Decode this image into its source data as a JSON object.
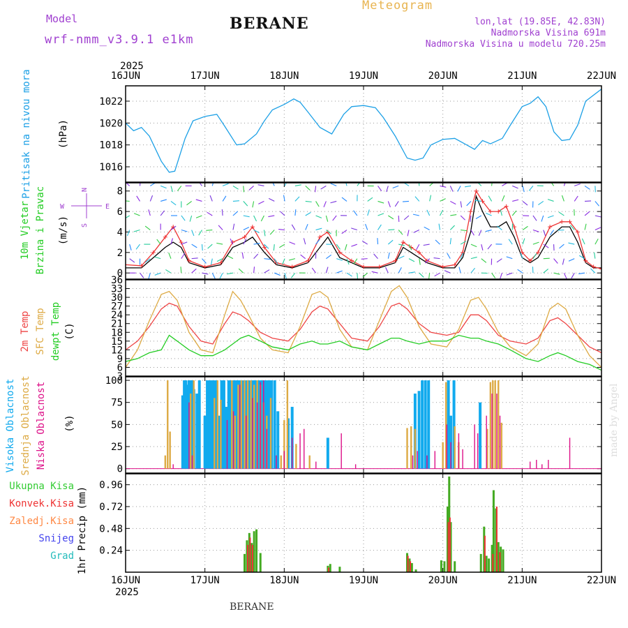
{
  "header": {
    "model_label": "Model",
    "model_name": "wrf-nmm_v3.9.1  e1km",
    "station": "BERANE",
    "meteogram": "Meteogram",
    "lonlat": "lon,lat (19.85E, 42.83N)",
    "elevation": "Nadmorska Visina 691m",
    "model_elevation": "Nadmorska Visina u modelu 720.25m",
    "footer_station": "BERANE",
    "credit": "made by Angel"
  },
  "colors": {
    "pressure": "#1ca0e6",
    "wind_speed": "#000000",
    "gust": "#ee3333",
    "temp2m": "#ee4444",
    "sfc_temp": "#ddaa44",
    "dewpt": "#22cc22",
    "high_cloud": "#11aaee",
    "mid_cloud": "#ddaa44",
    "low_cloud": "#dd1188",
    "total_precip": "#44aa22",
    "conv_precip": "#ee3333",
    "title_purple": "#a040d0",
    "title_orange": "#e8b450"
  },
  "time_axis": {
    "year_top": "2025",
    "year_bottom": "2025",
    "day_labels": [
      "16JUN",
      "17JUN",
      "18JUN",
      "19JUN",
      "20JUN",
      "21JUN",
      "22JUN"
    ]
  },
  "chart_data": [
    {
      "type": "line",
      "id": "pressure",
      "ylabel_lines": [
        "Pritisak na nivou mora"
      ],
      "unit": "(hPa)",
      "ylim": [
        1014.6,
        1023.4
      ],
      "yticks": [
        "1016",
        "1018",
        "1020",
        "1022"
      ],
      "ytick_values": [
        1016,
        1018,
        1020,
        1022
      ],
      "x_days": [
        0,
        0.1,
        0.2,
        0.3,
        0.45,
        0.55,
        0.62,
        0.75,
        0.85,
        1.0,
        1.15,
        1.25,
        1.4,
        1.5,
        1.65,
        1.75,
        1.85,
        2.0,
        2.12,
        2.2,
        2.3,
        2.45,
        2.6,
        2.75,
        2.85,
        3.0,
        3.15,
        3.25,
        3.4,
        3.55,
        3.65,
        3.75,
        3.85,
        4.0,
        4.15,
        4.3,
        4.4,
        4.5,
        4.6,
        4.75,
        4.85,
        5.0,
        5.1,
        5.2,
        5.3,
        5.4,
        5.5,
        5.6,
        5.7,
        5.8,
        6.0
      ],
      "series": [
        {
          "name": "pressure",
          "values": [
            1020.0,
            1019.3,
            1019.6,
            1018.8,
            1016.5,
            1015.5,
            1015.6,
            1018.6,
            1020.2,
            1020.6,
            1020.8,
            1019.7,
            1018.0,
            1018.1,
            1019.0,
            1020.2,
            1021.2,
            1021.7,
            1022.2,
            1021.9,
            1021.0,
            1019.6,
            1019.0,
            1020.8,
            1021.5,
            1021.6,
            1021.4,
            1020.5,
            1018.8,
            1016.8,
            1016.6,
            1016.8,
            1018.0,
            1018.5,
            1018.6,
            1018.0,
            1017.6,
            1018.4,
            1018.1,
            1018.6,
            1019.8,
            1021.5,
            1021.8,
            1022.4,
            1021.5,
            1019.2,
            1018.4,
            1018.5,
            1019.8,
            1022.0,
            1023.1
          ]
        }
      ]
    },
    {
      "type": "line",
      "id": "wind",
      "ylabel_lines": [
        "10m Vjetar",
        "Brzina i Pravac"
      ],
      "unit": "(m/s)",
      "compass": {
        "n": "N",
        "s": "S",
        "e": "E",
        "w": "W"
      },
      "ylim": [
        -0.6,
        8.8
      ],
      "yticks": [
        "0",
        "2",
        "4",
        "6",
        "8"
      ],
      "ytick_values": [
        0,
        2,
        4,
        6,
        8
      ],
      "x_days": [
        0,
        0.2,
        0.35,
        0.5,
        0.6,
        0.7,
        0.8,
        1.0,
        1.2,
        1.35,
        1.5,
        1.6,
        1.75,
        1.9,
        2.1,
        2.3,
        2.45,
        2.55,
        2.7,
        2.85,
        3.0,
        3.2,
        3.4,
        3.5,
        3.6,
        3.7,
        3.8,
        4.0,
        4.15,
        4.25,
        4.35,
        4.42,
        4.5,
        4.6,
        4.7,
        4.8,
        4.9,
        5.0,
        5.1,
        5.2,
        5.35,
        5.5,
        5.6,
        5.7,
        5.8,
        5.9,
        6.0
      ],
      "series": [
        {
          "name": "speed",
          "values": [
            0.5,
            0.5,
            1.5,
            2.5,
            3.0,
            2.5,
            1.0,
            0.5,
            0.8,
            2.5,
            3.0,
            3.5,
            2.0,
            0.8,
            0.5,
            1.0,
            2.5,
            3.5,
            1.5,
            1.0,
            0.5,
            0.5,
            1.0,
            2.5,
            2.0,
            1.5,
            1.0,
            0.5,
            0.5,
            1.5,
            4.0,
            7.5,
            6.0,
            4.5,
            4.5,
            5.0,
            3.5,
            1.5,
            1.0,
            1.5,
            3.5,
            4.5,
            4.5,
            3.0,
            1.0,
            0.5,
            0.5
          ]
        },
        {
          "name": "gust",
          "values": [
            0.8,
            0.7,
            2.0,
            3.5,
            4.5,
            3.0,
            1.2,
            0.6,
            1.0,
            3.0,
            3.5,
            4.5,
            2.5,
            1.0,
            0.6,
            1.2,
            3.5,
            4.0,
            2.0,
            1.2,
            0.6,
            0.6,
            1.2,
            3.0,
            2.5,
            2.0,
            1.2,
            0.6,
            0.8,
            2.0,
            6.0,
            8.0,
            7.0,
            6.0,
            6.0,
            6.5,
            4.5,
            2.0,
            1.2,
            2.0,
            4.5,
            5.0,
            5.0,
            4.0,
            1.2,
            0.6,
            0.4
          ]
        }
      ]
    },
    {
      "type": "line",
      "id": "temperature",
      "ylabel_lines": [
        "2m Temp",
        "SFC Temp",
        "dewpt Temp"
      ],
      "unit": "(C)",
      "ylim": [
        3,
        36
      ],
      "yticks": [
        "3",
        "6",
        "9",
        "12",
        "15",
        "18",
        "21",
        "24",
        "27",
        "30",
        "33",
        "36"
      ],
      "ytick_values": [
        3,
        6,
        9,
        12,
        15,
        18,
        21,
        24,
        27,
        30,
        33,
        36
      ],
      "x_days": [
        0,
        0.15,
        0.3,
        0.45,
        0.55,
        0.65,
        0.8,
        0.95,
        1.1,
        1.25,
        1.35,
        1.45,
        1.55,
        1.7,
        1.85,
        2.05,
        2.2,
        2.35,
        2.45,
        2.55,
        2.7,
        2.85,
        3.05,
        3.2,
        3.35,
        3.45,
        3.55,
        3.7,
        3.85,
        4.05,
        4.2,
        4.35,
        4.45,
        4.55,
        4.7,
        4.85,
        5.05,
        5.2,
        5.35,
        5.45,
        5.55,
        5.7,
        5.85,
        6.0
      ],
      "series": [
        {
          "name": "2m",
          "values": [
            12,
            15,
            20,
            26,
            28,
            27,
            20,
            15,
            14,
            21,
            25,
            24,
            22,
            18,
            16,
            15,
            19,
            25,
            27,
            26,
            21,
            16,
            15,
            20,
            27,
            28,
            26,
            21,
            18,
            17,
            18,
            24,
            24,
            22,
            17,
            15,
            14,
            16,
            22,
            23,
            21,
            17,
            13,
            11
          ]
        },
        {
          "name": "sfc",
          "values": [
            6,
            12,
            22,
            31,
            32,
            29,
            18,
            12,
            11,
            24,
            32,
            29,
            24,
            16,
            12,
            11,
            20,
            31,
            32,
            30,
            19,
            13,
            12,
            22,
            32,
            34,
            30,
            20,
            14,
            13,
            19,
            29,
            30,
            26,
            18,
            13,
            10,
            14,
            26,
            28,
            26,
            17,
            10,
            6
          ]
        },
        {
          "name": "dewpt",
          "values": [
            8,
            9,
            11,
            12,
            17,
            15,
            12,
            10,
            10,
            12,
            14,
            16,
            17,
            15,
            13,
            12,
            14,
            15,
            14,
            14,
            15,
            13,
            12,
            14,
            16,
            16,
            15,
            14,
            15,
            15,
            17,
            16,
            16,
            15,
            14,
            12,
            9,
            8,
            10,
            11,
            10,
            8,
            7,
            5
          ]
        }
      ]
    },
    {
      "type": "bar",
      "id": "clouds",
      "ylabel_lines": [
        "Visoka Oblacnost",
        "Srednja Oblacnost",
        "Niska Oblacnost"
      ],
      "unit": "(%)",
      "ylim": [
        -5,
        104
      ],
      "yticks": [
        "0",
        "25",
        "50",
        "75",
        "100"
      ],
      "ytick_values": [
        0,
        25,
        50,
        75,
        100
      ],
      "series": [
        {
          "name": "high",
          "x_days": [
            0.72,
            0.74,
            0.76,
            0.78,
            0.8,
            0.82,
            0.84,
            0.86,
            0.9,
            0.93,
            1.0,
            1.03,
            1.06,
            1.09,
            1.12,
            1.15,
            1.18,
            1.21,
            1.24,
            1.27,
            1.3,
            1.33,
            1.36,
            1.39,
            1.42,
            1.45,
            1.48,
            1.51,
            1.54,
            1.57,
            1.6,
            1.63,
            1.66,
            1.69,
            1.72,
            1.75,
            1.78,
            1.81,
            1.84,
            1.88,
            1.92,
            2.05,
            2.1,
            2.55,
            3.65,
            3.7,
            3.74,
            3.78,
            3.82,
            4.07,
            4.1,
            4.14,
            4.47
          ],
          "values": [
            83,
            100,
            100,
            95,
            100,
            100,
            100,
            90,
            85,
            100,
            60,
            100,
            100,
            100,
            100,
            100,
            60,
            100,
            100,
            70,
            100,
            100,
            100,
            100,
            100,
            100,
            100,
            100,
            100,
            100,
            100,
            100,
            100,
            100,
            100,
            100,
            100,
            100,
            100,
            100,
            65,
            57,
            70,
            35,
            85,
            88,
            100,
            100,
            100,
            100,
            60,
            100,
            75
          ]
        },
        {
          "name": "mid",
          "x_days": [
            0.5,
            0.53,
            0.56,
            0.82,
            0.86,
            1.12,
            1.16,
            1.2,
            1.34,
            1.38,
            1.42,
            1.46,
            1.5,
            1.54,
            1.58,
            1.62,
            1.66,
            1.7,
            1.74,
            1.78,
            1.83,
            1.96,
            2.0,
            2.04,
            2.15,
            2.32,
            3.55,
            3.6,
            3.65,
            4.0,
            4.04,
            4.15,
            4.2,
            4.56,
            4.6,
            4.63,
            4.66,
            4.7,
            4.74
          ],
          "values": [
            15,
            100,
            42,
            85,
            100,
            80,
            100,
            78,
            100,
            60,
            95,
            100,
            100,
            100,
            100,
            95,
            100,
            95,
            75,
            60,
            80,
            15,
            55,
            100,
            28,
            15,
            46,
            48,
            45,
            30,
            98,
            48,
            30,
            45,
            98,
            100,
            100,
            100,
            52
          ]
        },
        {
          "name": "low",
          "x_days": [
            0.6,
            0.8,
            0.84,
            1.28,
            1.36,
            1.44,
            1.52,
            1.6,
            1.66,
            1.7,
            1.74,
            1.78,
            1.9,
            2.0,
            2.1,
            2.2,
            2.25,
            2.4,
            2.72,
            2.9,
            3.62,
            3.68,
            3.8,
            3.9,
            4.05,
            4.1,
            4.2,
            4.25,
            4.4,
            4.44,
            4.55,
            4.62,
            4.68,
            4.72,
            5.1,
            5.18,
            5.25,
            5.33,
            5.6
          ],
          "values": [
            5,
            75,
            15,
            55,
            65,
            95,
            60,
            80,
            75,
            98,
            100,
            45,
            15,
            20,
            35,
            40,
            45,
            8,
            40,
            5,
            15,
            20,
            15,
            20,
            50,
            30,
            40,
            22,
            50,
            40,
            60,
            85,
            85,
            60,
            8,
            10,
            5,
            10,
            35
          ]
        }
      ]
    },
    {
      "type": "bar",
      "id": "precip",
      "ylabel_lines": [
        "1hr Precip (mm)"
      ],
      "legend": [
        "Ukupna Kisa",
        "Konvek.Kisa",
        "Zaledj.Kisa",
        "Snijeg",
        "Grad"
      ],
      "legend_colors": [
        "#33cc33",
        "#ee3333",
        "#ff8844",
        "#4444ee",
        "#22bbbb"
      ],
      "ylim": [
        0,
        1.08
      ],
      "yticks": [
        "0.24",
        "0.48",
        "0.72",
        "0.96"
      ],
      "ytick_values": [
        0.24,
        0.48,
        0.72,
        0.96
      ],
      "series": [
        {
          "name": "total",
          "x_days": [
            1.5,
            1.53,
            1.56,
            1.59,
            1.62,
            1.65,
            1.7,
            2.55,
            2.58,
            2.7,
            3.55,
            3.58,
            3.61,
            3.66,
            3.98,
            4.02,
            4.06,
            4.08,
            4.1,
            4.15,
            4.48,
            4.52,
            4.55,
            4.58,
            4.62,
            4.64,
            4.67,
            4.7,
            4.73,
            4.76
          ],
          "values": [
            0.2,
            0.35,
            0.43,
            0.32,
            0.45,
            0.47,
            0.21,
            0.07,
            0.09,
            0.06,
            0.21,
            0.15,
            0.1,
            0.03,
            0.13,
            0.12,
            0.72,
            1.05,
            0.55,
            0.12,
            0.2,
            0.5,
            0.18,
            0.15,
            0.3,
            0.9,
            0.7,
            0.33,
            0.28,
            0.25
          ]
        },
        {
          "name": "convective",
          "x_days": [
            1.54,
            1.57,
            1.6,
            2.56,
            3.56,
            3.59,
            4.07,
            4.09,
            4.53,
            4.63,
            4.68,
            4.72
          ],
          "values": [
            0.3,
            0.38,
            0.3,
            0.05,
            0.18,
            0.12,
            0.55,
            0.6,
            0.4,
            0.2,
            0.72,
            0.22
          ]
        }
      ]
    }
  ]
}
